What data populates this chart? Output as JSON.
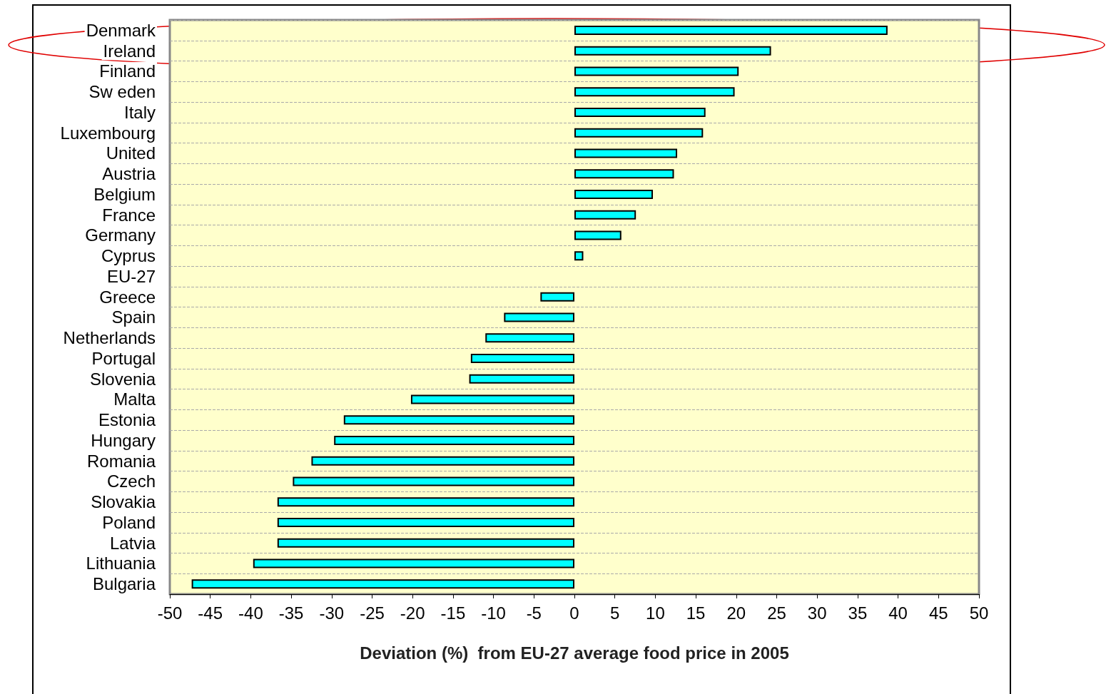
{
  "chart_data": {
    "type": "bar",
    "orientation": "horizontal",
    "xlabel": "Deviation (%)  from EU-27 average food price in 2005",
    "categories": [
      "Denmark",
      "Ireland",
      "Finland",
      "Sw eden",
      "Italy",
      "Luxembourg",
      "United",
      "Austria",
      "Belgium",
      "France",
      "Germany",
      "Cyprus",
      "EU-27",
      "Greece",
      "Spain",
      "Netherlands",
      "Portugal",
      "Slovenia",
      "Malta",
      "Estonia",
      "Hungary",
      "Romania",
      "Czech",
      "Slovakia",
      "Poland",
      "Latvia",
      "Lithuania",
      "Bulgaria"
    ],
    "values": [
      38.7,
      24.3,
      20.3,
      19.8,
      16.2,
      15.9,
      12.7,
      12.3,
      9.7,
      7.6,
      5.8,
      1.1,
      0,
      -4.2,
      -8.7,
      -11.0,
      -12.8,
      -13.0,
      -20.2,
      -28.5,
      -29.7,
      -32.5,
      -34.8,
      -36.7,
      -36.7,
      -36.7,
      -39.7,
      -47.3
    ],
    "color": "#00ffff",
    "xlim": [
      -50,
      50
    ],
    "xticks": [
      -50,
      -45,
      -40,
      -35,
      -30,
      -25,
      -20,
      -15,
      -10,
      -5,
      0,
      5,
      10,
      15,
      20,
      25,
      30,
      35,
      40,
      45,
      50
    ],
    "grid": "y"
  }
}
